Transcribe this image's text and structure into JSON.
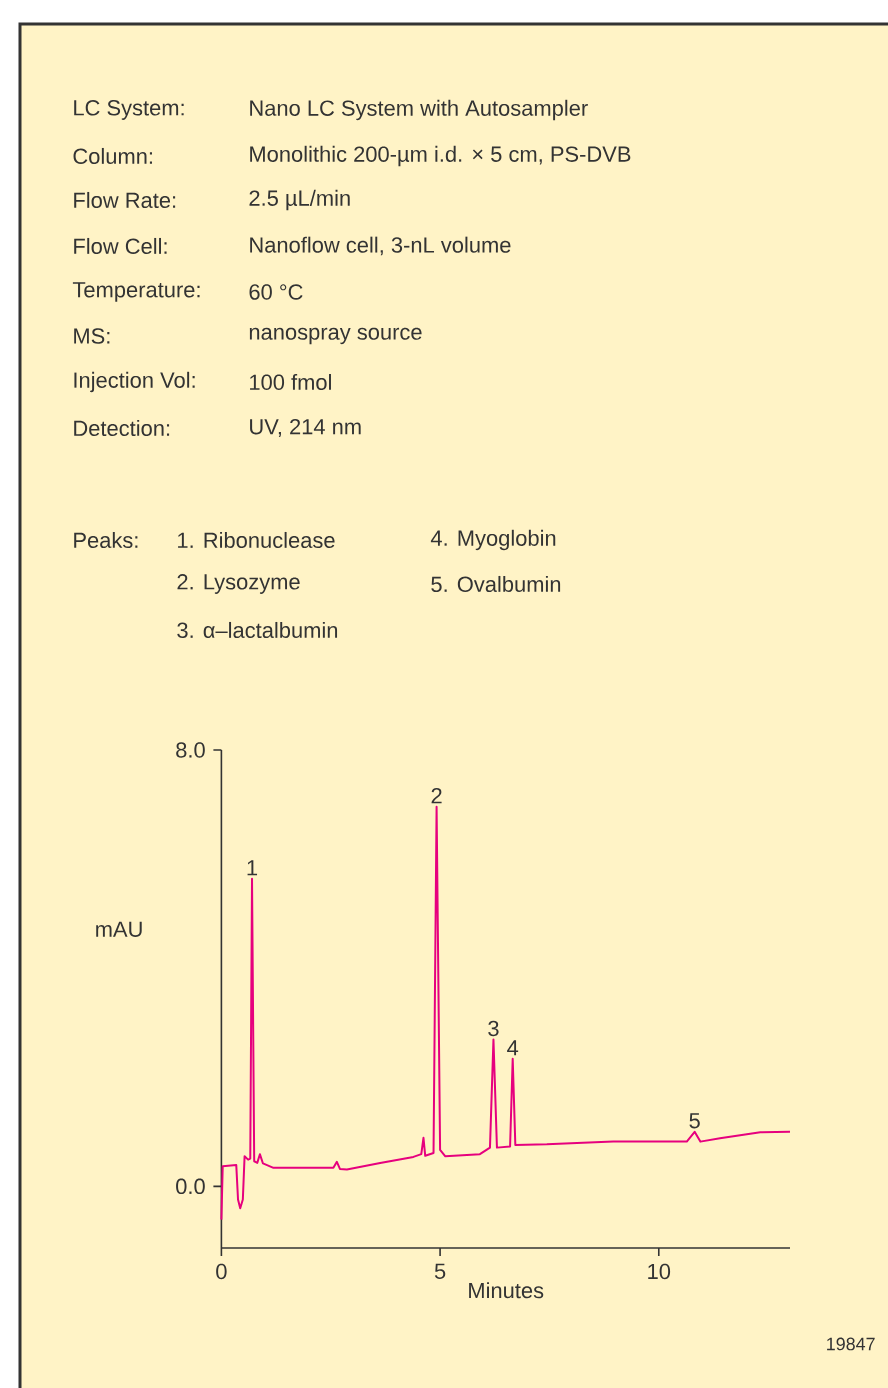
{
  "chart_data": {
    "type": "line",
    "xlabel": "Minutes",
    "ylabel": "mAU",
    "color": "#e6007e",
    "x": [
      0,
      0.03,
      0.34,
      0.38,
      0.43,
      0.49,
      0.53,
      0.61,
      0.66,
      0.7,
      0.75,
      0.82,
      0.88,
      0.95,
      1.19,
      2.56,
      2.64,
      2.71,
      2.87,
      3.63,
      4.39,
      4.57,
      4.62,
      4.66,
      4.85,
      4.92,
      5.0,
      5.12,
      5.91,
      6.14,
      6.22,
      6.3,
      6.6,
      6.66,
      6.72,
      7.44,
      8.96,
      10.64,
      10.82,
      10.95,
      11.4,
      12.32,
      13.0
    ],
    "values": [
      -0.61,
      0.37,
      0.39,
      -0.24,
      -0.4,
      -0.24,
      0.55,
      0.49,
      0.51,
      5.64,
      0.46,
      0.43,
      0.59,
      0.42,
      0.34,
      0.34,
      0.45,
      0.32,
      0.31,
      0.43,
      0.54,
      0.59,
      0.89,
      0.56,
      0.61,
      6.96,
      0.67,
      0.55,
      0.59,
      0.71,
      2.69,
      0.71,
      0.73,
      2.34,
      0.76,
      0.77,
      0.82,
      0.82,
      1.0,
      0.82,
      0.88,
      0.99,
      1.0
    ],
    "xlim": [
      0,
      13
    ],
    "ylim": [
      -1.13,
      8.0
    ],
    "xticks": [
      0,
      5,
      10
    ],
    "yticks": [
      {
        "value": 0,
        "label": "0.0"
      },
      {
        "value": 8,
        "label": "8.0"
      }
    ],
    "annotations": [
      "LC System:",
      "Nano LC System with Autosampler",
      "Column:",
      "Monolithic 200-µm i.d. × 5 cm, PS-DVB",
      "Flow Rate:",
      "2.5 µL/min",
      "Flow Cell:",
      "Nanoflow cell, 3-nL volume",
      "Temperature:",
      "60 °C",
      "MS:",
      "nanospray source",
      "Injection Vol:",
      "100 fmol",
      "Detection:",
      "UV, 214 nm",
      "Peaks:",
      "1. Ribonuclease",
      "4. Myoglobin",
      "2. Lysozyme",
      "5. Ovalbumin",
      "3. α–lactalbumin",
      {
        "text": "1",
        "x": 0.7,
        "y": 5.64
      },
      {
        "text": "2",
        "x": 4.92,
        "y": 6.96
      },
      {
        "text": "3",
        "x": 6.22,
        "y": 2.69
      },
      {
        "text": "4",
        "x": 6.66,
        "y": 2.34
      },
      {
        "text": "5",
        "x": 10.82,
        "y": 1.0
      },
      "19847"
    ]
  }
}
